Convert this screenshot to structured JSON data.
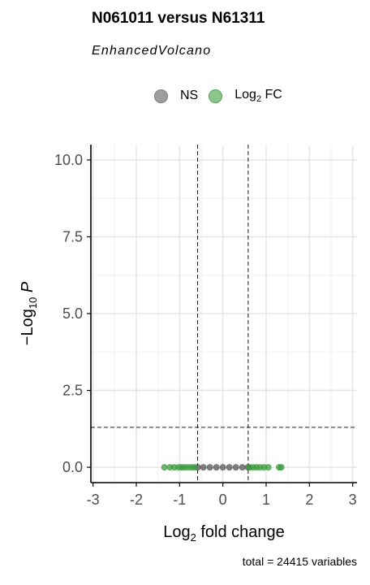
{
  "chart_data": {
    "type": "scatter",
    "title": "N061011 versus N61311",
    "subtitle": "EnhancedVolcano",
    "xlabel": "Log₂ fold change",
    "ylabel": "−Log₁₀ P",
    "xlim": [
      -3.05,
      3.1
    ],
    "ylim": [
      -0.5,
      10.5
    ],
    "x_ticks": [
      -3,
      -2,
      -1,
      0,
      1,
      2,
      3
    ],
    "x_tick_labels": [
      "-3",
      "-2",
      "-1",
      "0",
      "1",
      "2",
      "3"
    ],
    "y_ticks": [
      0,
      2.5,
      5,
      7.5,
      10
    ],
    "y_tick_labels": [
      "0.0",
      "2.5",
      "5.0",
      "7.5",
      "10.0"
    ],
    "grid": true,
    "legend_position": "top",
    "legend": [
      {
        "name": "NS",
        "color": "#7f7f7f"
      },
      {
        "name": "Log₂ FC",
        "color": "#3a9a3a"
      }
    ],
    "thresholds": {
      "fc_cutoff": [
        -0.585,
        0.585
      ],
      "p_cutoff_neglog10": 1.301
    },
    "series": [
      {
        "name": "NS",
        "color": "#555555",
        "points": [
          [
            -0.58,
            0.0
          ],
          [
            -0.45,
            0.0
          ],
          [
            -0.3,
            0.0
          ],
          [
            -0.15,
            0.0
          ],
          [
            0.0,
            0.0
          ],
          [
            0.15,
            0.0
          ],
          [
            0.3,
            0.0
          ],
          [
            0.45,
            0.0
          ],
          [
            0.58,
            0.0
          ]
        ]
      },
      {
        "name": "Log₂ FC",
        "color": "#3a9a3a",
        "points": [
          [
            -1.35,
            0.0
          ],
          [
            -1.22,
            0.0
          ],
          [
            -1.12,
            0.0
          ],
          [
            -1.02,
            0.0
          ],
          [
            -0.95,
            0.0
          ],
          [
            -0.88,
            0.0
          ],
          [
            -0.8,
            0.0
          ],
          [
            -0.72,
            0.0
          ],
          [
            -0.65,
            0.0
          ],
          [
            0.62,
            0.0
          ],
          [
            0.7,
            0.0
          ],
          [
            0.78,
            0.0
          ],
          [
            0.86,
            0.0
          ],
          [
            0.95,
            0.0
          ],
          [
            1.05,
            0.0
          ],
          [
            1.3,
            0.0
          ],
          [
            1.35,
            0.0
          ]
        ]
      }
    ],
    "caption": "total = 24415 variables"
  },
  "legend_labels": {
    "ns": "NS",
    "fc_base": "Log",
    "fc_sub": "2",
    "fc_rest": " FC"
  }
}
